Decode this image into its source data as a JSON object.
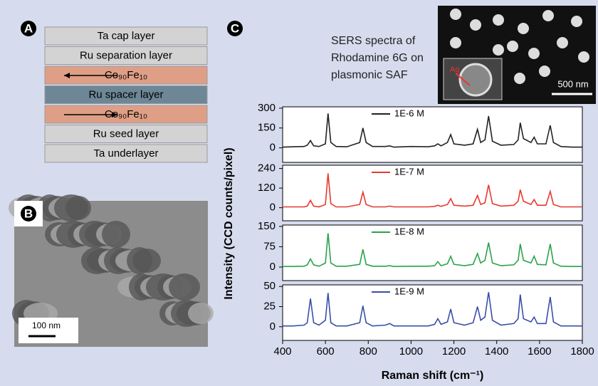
{
  "panel_labels": [
    "A",
    "B",
    "C"
  ],
  "layers": [
    "Ta cap layer",
    "Ru separation layer",
    "Co₉₀Fe₁₀",
    "Ru spacer layer",
    "Co₉₀Fe₁₀",
    "Ru seed layer",
    "Ta underlayer"
  ],
  "tem_image": {
    "scale_bar": "100 nm"
  },
  "sem_inset": {
    "scale_bar": "500 nm",
    "marker": "Ag"
  },
  "panel_c": {
    "title_lines": [
      "SERS spectra of",
      "Rhodamine 6G on",
      "plasmonic SAF"
    ],
    "y_label": "Intensity (CCD counts/pixel)"
  },
  "chart_data": [
    {
      "type": "line",
      "xlim": [
        400,
        1800
      ],
      "ylim": [
        -110,
        310
      ],
      "yticks": [
        0,
        150,
        300
      ],
      "x": [
        400,
        450,
        500,
        515,
        530,
        545,
        570,
        600,
        612,
        625,
        650,
        700,
        760,
        775,
        790,
        820,
        880,
        900,
        920,
        1000,
        1080,
        1110,
        1125,
        1140,
        1170,
        1185,
        1200,
        1250,
        1290,
        1310,
        1325,
        1345,
        1362,
        1380,
        1420,
        1480,
        1500,
        1510,
        1525,
        1560,
        1575,
        1590,
        1630,
        1650,
        1665,
        1700,
        1750,
        1800
      ],
      "series": [
        {
          "name": "1E-6 M",
          "color": "#222222",
          "values": [
            5,
            8,
            10,
            20,
            55,
            15,
            10,
            30,
            260,
            40,
            10,
            8,
            40,
            150,
            40,
            10,
            10,
            15,
            5,
            10,
            8,
            15,
            30,
            15,
            40,
            100,
            30,
            20,
            30,
            140,
            40,
            60,
            240,
            50,
            20,
            25,
            60,
            190,
            70,
            40,
            80,
            30,
            30,
            170,
            40,
            10,
            5,
            5
          ]
        }
      ]
    },
    {
      "type": "line",
      "xlim": [
        400,
        1800
      ],
      "ylim": [
        -80,
        260
      ],
      "yticks": [
        0,
        120,
        240
      ],
      "x": [
        400,
        450,
        500,
        515,
        530,
        545,
        570,
        600,
        612,
        625,
        650,
        700,
        760,
        775,
        790,
        820,
        880,
        900,
        920,
        1000,
        1080,
        1110,
        1125,
        1140,
        1170,
        1185,
        1200,
        1250,
        1290,
        1310,
        1325,
        1345,
        1362,
        1380,
        1420,
        1480,
        1500,
        1510,
        1525,
        1560,
        1575,
        1590,
        1630,
        1650,
        1665,
        1700,
        1750,
        1800
      ],
      "series": [
        {
          "name": "1E-7 M",
          "color": "#e8392f",
          "values": [
            5,
            5,
            5,
            10,
            45,
            10,
            5,
            20,
            210,
            25,
            5,
            5,
            20,
            95,
            20,
            5,
            5,
            10,
            5,
            5,
            5,
            8,
            15,
            8,
            20,
            55,
            15,
            10,
            15,
            75,
            20,
            30,
            140,
            25,
            10,
            15,
            40,
            110,
            40,
            20,
            50,
            15,
            15,
            100,
            20,
            5,
            5,
            5
          ]
        }
      ]
    },
    {
      "type": "line",
      "xlim": [
        400,
        1800
      ],
      "ylim": [
        -50,
        155
      ],
      "yticks": [
        0,
        75,
        150
      ],
      "x": [
        400,
        450,
        500,
        515,
        530,
        545,
        570,
        600,
        612,
        625,
        650,
        700,
        760,
        775,
        790,
        820,
        880,
        900,
        920,
        1000,
        1080,
        1110,
        1125,
        1140,
        1170,
        1185,
        1200,
        1250,
        1290,
        1310,
        1325,
        1345,
        1362,
        1380,
        1420,
        1480,
        1500,
        1510,
        1525,
        1560,
        1575,
        1590,
        1630,
        1650,
        1665,
        1700,
        1750,
        1800
      ],
      "series": [
        {
          "name": "1E-8 M",
          "color": "#2aa24a",
          "values": [
            2,
            2,
            3,
            8,
            30,
            8,
            3,
            15,
            125,
            15,
            3,
            3,
            10,
            65,
            10,
            3,
            3,
            5,
            2,
            3,
            3,
            5,
            20,
            5,
            12,
            40,
            10,
            5,
            10,
            50,
            15,
            25,
            90,
            15,
            5,
            8,
            25,
            85,
            25,
            15,
            40,
            10,
            8,
            85,
            15,
            3,
            2,
            2
          ]
        }
      ]
    },
    {
      "type": "line",
      "xlim": [
        400,
        1800
      ],
      "ylim": [
        -17,
        52
      ],
      "yticks": [
        0,
        25,
        50
      ],
      "xticks": [
        400,
        600,
        800,
        1000,
        1200,
        1400,
        1600,
        1800
      ],
      "x_label": "Raman shift (cm⁻¹)",
      "x": [
        400,
        450,
        500,
        515,
        530,
        545,
        570,
        600,
        612,
        625,
        650,
        700,
        760,
        775,
        790,
        820,
        880,
        900,
        920,
        1000,
        1080,
        1110,
        1125,
        1140,
        1170,
        1185,
        1200,
        1250,
        1290,
        1310,
        1325,
        1345,
        1362,
        1380,
        1420,
        1480,
        1500,
        1510,
        1525,
        1560,
        1575,
        1590,
        1630,
        1650,
        1665,
        1700,
        1750,
        1800
      ],
      "series": [
        {
          "name": "1E-9 M",
          "color": "#3a4fa8",
          "values": [
            1,
            1,
            2,
            5,
            35,
            5,
            2,
            8,
            42,
            5,
            1,
            1,
            5,
            26,
            5,
            1,
            2,
            4,
            1,
            1,
            1,
            3,
            10,
            3,
            6,
            22,
            5,
            2,
            5,
            25,
            8,
            12,
            43,
            8,
            2,
            4,
            10,
            40,
            10,
            6,
            12,
            4,
            4,
            37,
            6,
            1,
            1,
            1
          ]
        }
      ]
    }
  ]
}
